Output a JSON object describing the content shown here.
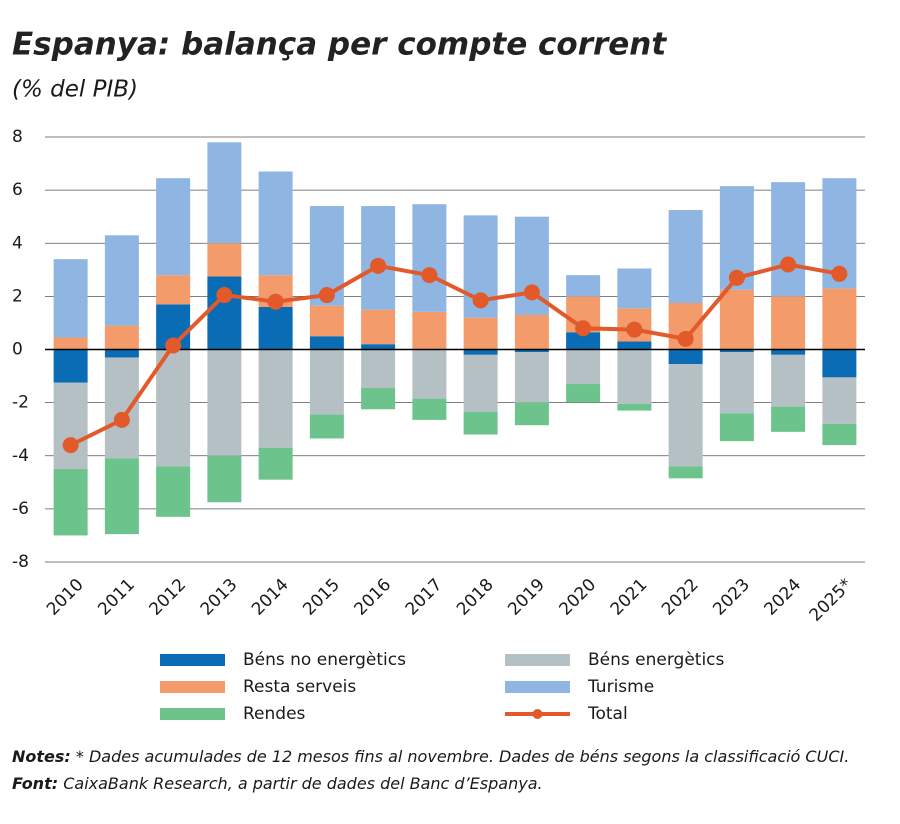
{
  "chart_data": {
    "type": "bar",
    "stacked": true,
    "title": "Espanya: balança per compte corrent",
    "subtitle": "(% del PIB)",
    "categories": [
      "2010",
      "2011",
      "2012",
      "2013",
      "2014",
      "2015",
      "2016",
      "2017",
      "2018",
      "2019",
      "2020",
      "2021",
      "2022",
      "2023",
      "2024",
      "2025*"
    ],
    "series": [
      {
        "name": "Béns no energètics",
        "color": "#0b6cb6",
        "values": [
          -1.25,
          -0.3,
          1.7,
          2.75,
          1.6,
          0.5,
          0.2,
          0.02,
          -0.2,
          -0.1,
          0.65,
          0.3,
          -0.55,
          -0.1,
          -0.2,
          -1.05
        ]
      },
      {
        "name": "Béns energètics",
        "color": "#b5c0c4",
        "values": [
          -3.25,
          -3.8,
          -4.4,
          -4.0,
          -3.7,
          -2.45,
          -1.45,
          -1.85,
          -2.15,
          -1.9,
          -1.3,
          -2.05,
          -3.85,
          -2.3,
          -1.95,
          -1.75
        ]
      },
      {
        "name": "Resta serveis",
        "color": "#f39b6b",
        "values": [
          0.45,
          0.9,
          1.1,
          1.25,
          1.2,
          1.15,
          1.3,
          1.4,
          1.2,
          1.3,
          1.35,
          1.25,
          1.75,
          2.25,
          2.0,
          2.3
        ]
      },
      {
        "name": "Turisme",
        "color": "#8fb5e3",
        "values": [
          2.95,
          3.4,
          3.65,
          3.8,
          3.9,
          3.75,
          3.9,
          4.05,
          3.85,
          3.7,
          0.8,
          1.5,
          3.5,
          3.9,
          4.3,
          4.15
        ]
      },
      {
        "name": "Rendes",
        "color": "#6cc38b",
        "values": [
          -2.5,
          -2.85,
          -1.9,
          -1.75,
          -1.2,
          -0.9,
          -0.8,
          -0.8,
          -0.85,
          -0.85,
          -0.7,
          -0.25,
          -0.45,
          -1.05,
          -0.95,
          -0.8
        ]
      },
      {
        "name": "Total",
        "type": "line",
        "color": "#e2592a",
        "values": [
          -3.6,
          -2.65,
          0.15,
          2.05,
          1.8,
          2.05,
          3.15,
          2.8,
          1.85,
          2.15,
          0.8,
          0.75,
          0.4,
          2.7,
          3.2,
          2.85
        ]
      }
    ],
    "ylim": [
      -8,
      8
    ],
    "yticks": [
      -8,
      -6,
      -4,
      -2,
      0,
      2,
      4,
      6,
      8
    ],
    "grid": true,
    "legend": "bottom",
    "notes": {
      "label": "Notes:",
      "text": " * Dades acumulades de 12 mesos fins al novembre. Dades de béns segons la classificació CUCI."
    },
    "source": {
      "label": "Font:",
      "text": " CaixaBank Research, a partir de dades del Banc d’Espanya."
    }
  }
}
